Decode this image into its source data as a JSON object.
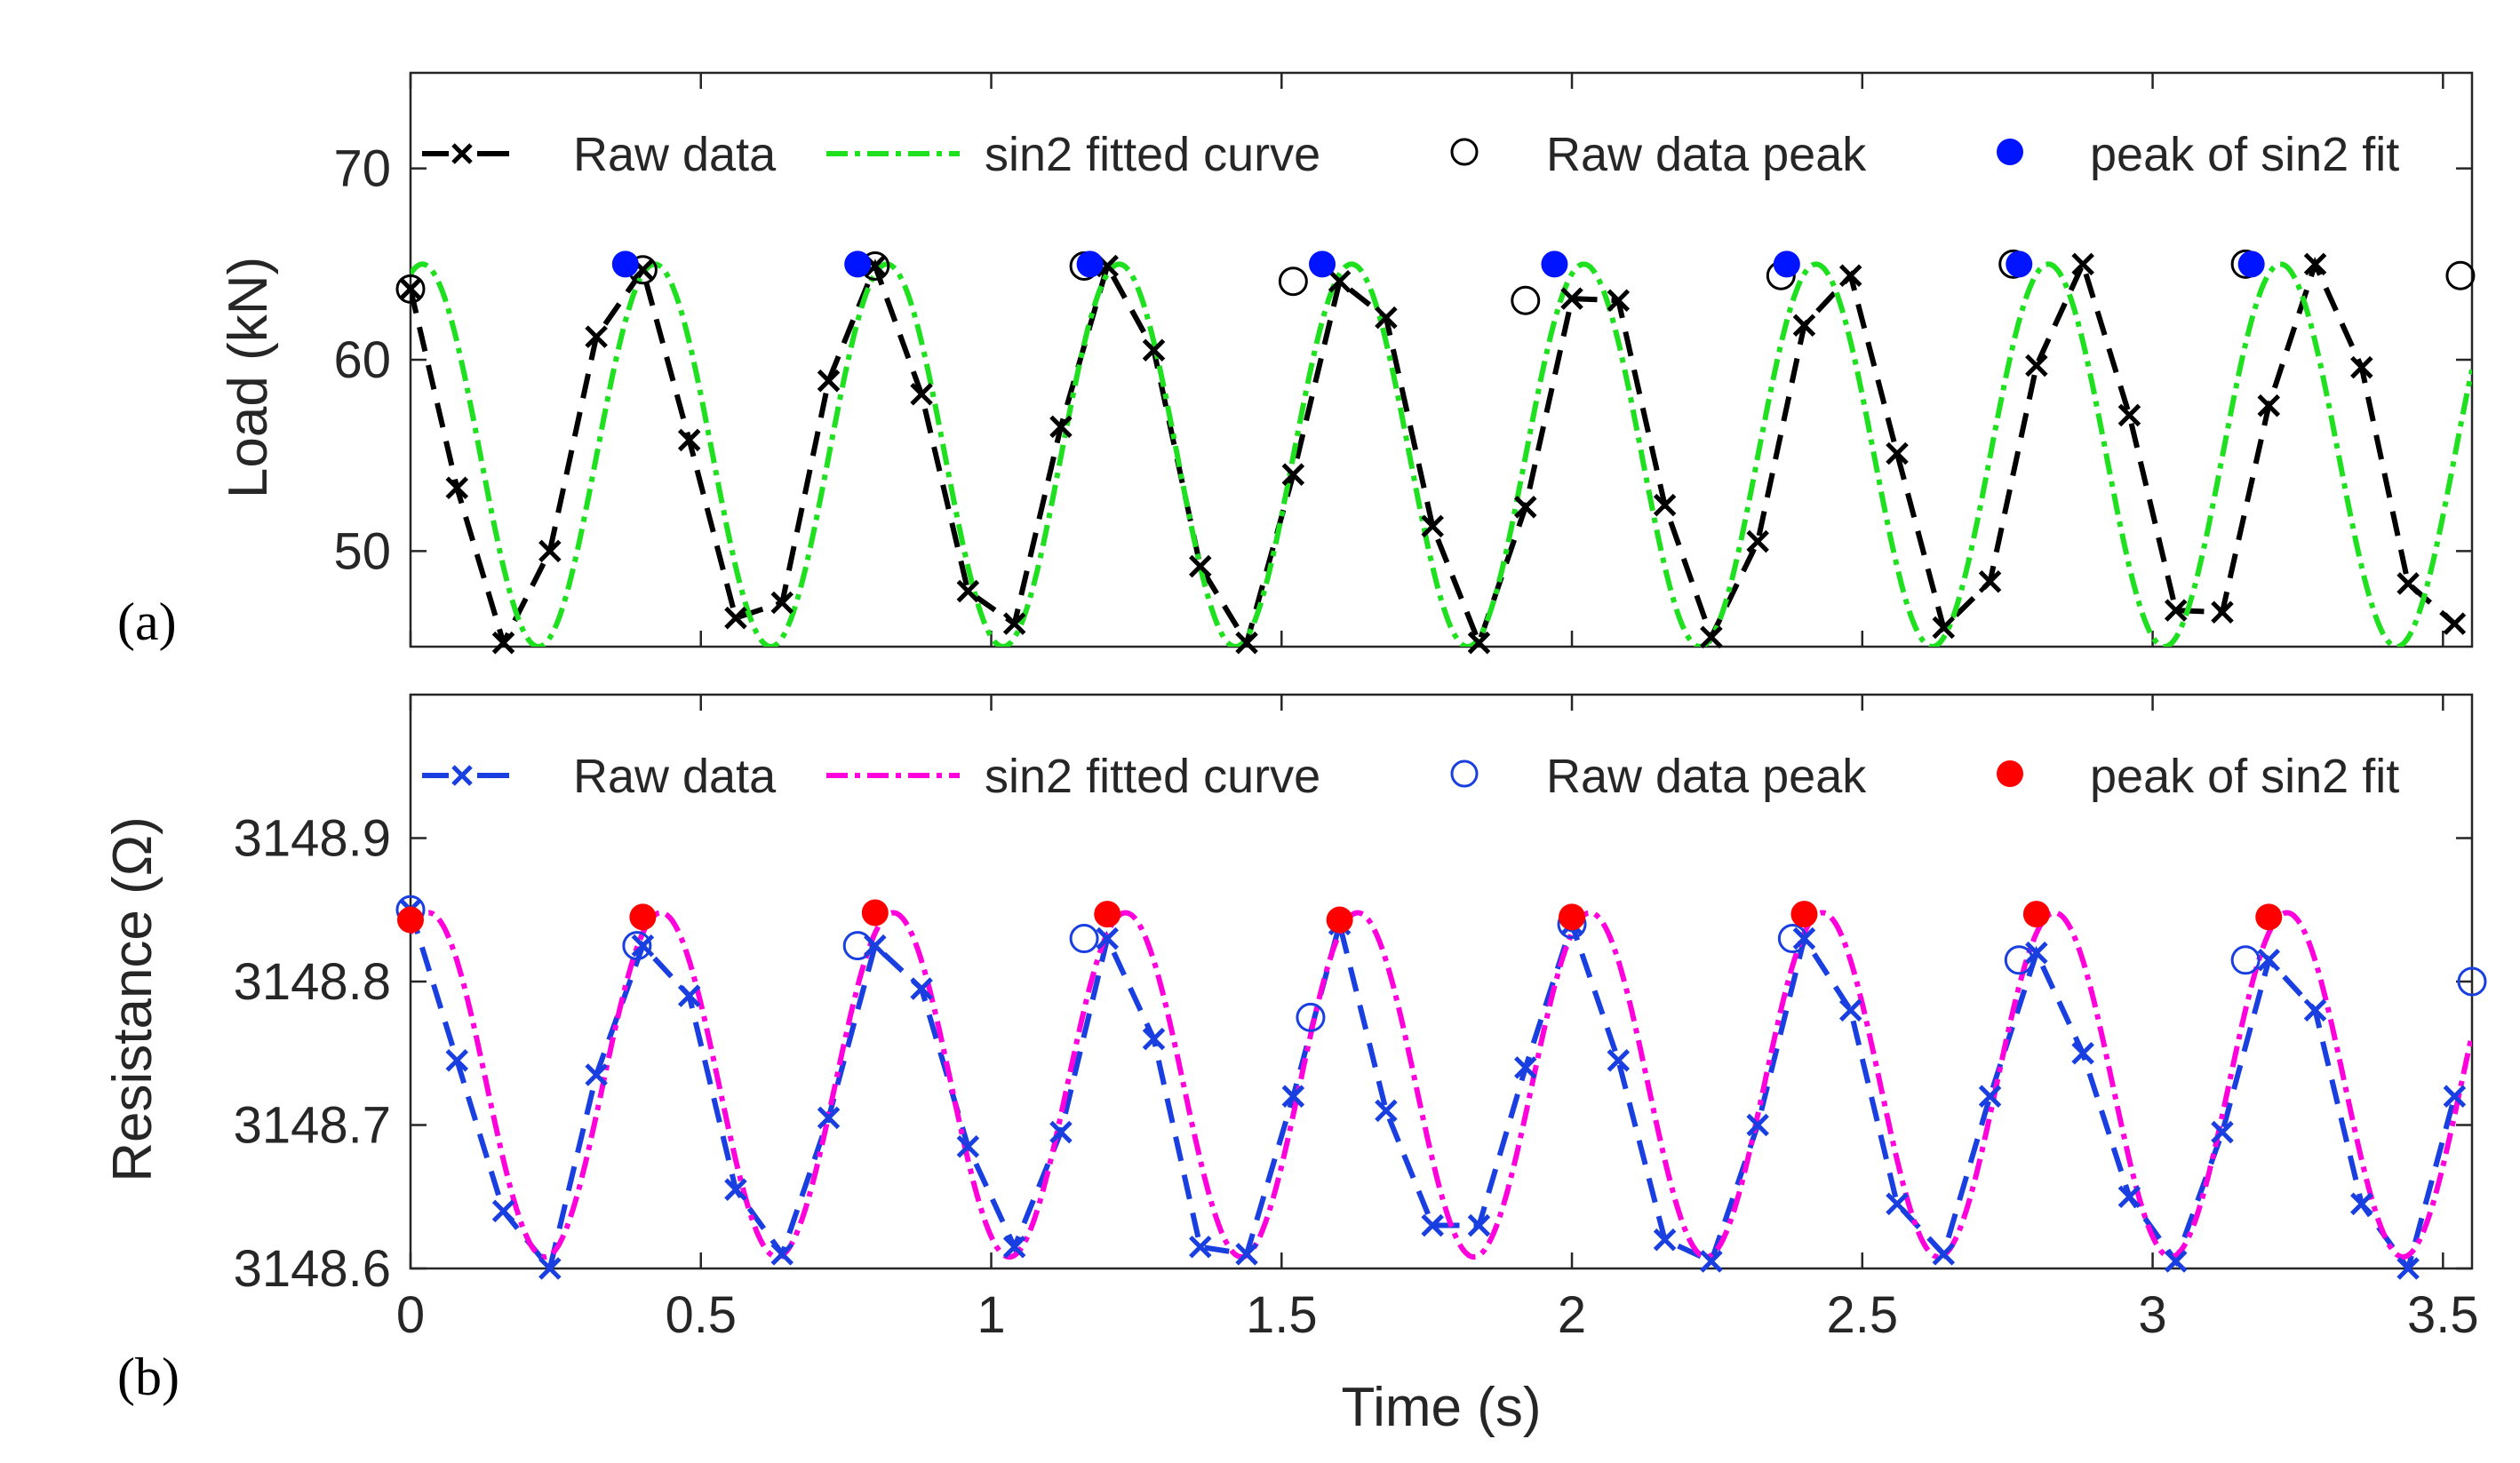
{
  "chart_data": [
    {
      "type": "line",
      "panel_tag": "(a)",
      "xlabel": "",
      "ylabel": "Load (kN)",
      "xlim": [
        0,
        3.55
      ],
      "ylim": [
        45,
        75
      ],
      "xticks": [
        0,
        0.5,
        1,
        1.5,
        2,
        2.5,
        3,
        3.5
      ],
      "yticks": [
        50,
        60,
        70
      ],
      "xtick_labels": [
        "",
        "",
        "",
        "",
        "",
        "",
        "",
        ""
      ],
      "ytick_labels": [
        "50",
        "60",
        "70"
      ],
      "grid": false,
      "legend_position": "top",
      "legend": {
        "raw": "Raw data",
        "fit": "sin2 fitted curve",
        "raw_peak": "Raw data peak",
        "fit_peak": "peak of sin2 fit"
      },
      "colors": {
        "raw": "#000000",
        "fit": "#1ee01e",
        "raw_peak": "#000000",
        "fit_peak": "#0014ff"
      },
      "fit_model": {
        "offset": 55,
        "amplitude": 10,
        "frequency_hz": 2.5,
        "phase_rad": 1.25
      },
      "series": [
        {
          "name": "Raw data",
          "style": "dashed-x",
          "x": [
            0,
            0.08,
            0.16,
            0.24,
            0.32,
            0.4,
            0.48,
            0.56,
            0.64,
            0.72,
            0.8,
            0.88,
            0.96,
            1.04,
            1.12,
            1.2,
            1.28,
            1.36,
            1.44,
            1.52,
            1.6,
            1.68,
            1.76,
            1.84,
            1.92,
            2.0,
            2.08,
            2.16,
            2.24,
            2.32,
            2.4,
            2.48,
            2.56,
            2.64,
            2.72,
            2.8,
            2.88,
            2.96,
            3.04,
            3.12,
            3.2,
            3.28,
            3.36,
            3.44,
            3.52
          ],
          "y": [
            63.7,
            53.3,
            45.2,
            50.0,
            61.2,
            64.7,
            55.8,
            46.5,
            47.3,
            58.9,
            64.9,
            58.2,
            47.9,
            46.2,
            56.5,
            64.9,
            60.5,
            49.2,
            45.2,
            54.0,
            64.1,
            62.2,
            51.3,
            45.2,
            52.3,
            63.2,
            63.1,
            52.4,
            45.5,
            50.5,
            61.8,
            64.4,
            55.1,
            46.0,
            48.4,
            59.7,
            65.0,
            57.1,
            46.9,
            46.8,
            57.6,
            65.0,
            59.6,
            48.3,
            46.2
          ]
        },
        {
          "name": "sin2 fitted curve",
          "style": "dash-dot",
          "function": "offset + amplitude*sin(2*pi*frequency_hz*t + phase_rad)"
        },
        {
          "name": "Raw data peak",
          "style": "open-circle",
          "x": [
            0,
            0.4,
            0.8,
            1.16,
            1.52,
            1.92,
            2.36,
            2.76,
            3.16,
            3.53
          ],
          "y": [
            63.7,
            64.7,
            64.9,
            64.9,
            64.1,
            63.1,
            64.4,
            65.0,
            65.0,
            64.4
          ]
        },
        {
          "name": "peak of sin2 fit",
          "style": "filled-circle",
          "x": [
            0.37,
            0.77,
            1.17,
            1.57,
            1.97,
            2.37,
            2.77,
            3.17
          ],
          "y": [
            65,
            65,
            65,
            65,
            65,
            65,
            65,
            65
          ]
        }
      ]
    },
    {
      "type": "line",
      "panel_tag": "(b)",
      "xlabel": "Time (s)",
      "ylabel": "Resistance (Ω)",
      "xlim": [
        0,
        3.55
      ],
      "ylim": [
        3148.6,
        3149.0
      ],
      "xticks": [
        0,
        0.5,
        1,
        1.5,
        2,
        2.5,
        3,
        3.5
      ],
      "yticks": [
        3148.6,
        3148.7,
        3148.8,
        3148.9
      ],
      "xtick_labels": [
        "0",
        "0.5",
        "1",
        "1.5",
        "2",
        "2.5",
        "3",
        "3.5"
      ],
      "ytick_labels": [
        "3148.6",
        "3148.7",
        "3148.8",
        "3148.9"
      ],
      "grid": false,
      "legend_position": "top",
      "legend": {
        "raw": "Raw data",
        "fit": "sin2 fitted curve",
        "raw_peak": "Raw data peak",
        "fit_peak": "peak of sin2 fit"
      },
      "colors": {
        "raw": "#1a3fe0",
        "fit": "#ff00dd",
        "raw_peak": "#1a3fe0",
        "fit_peak": "#ff0000"
      },
      "fit_model": {
        "offset": 3148.728,
        "amplitude": 0.12,
        "frequency_hz": 2.5,
        "phase_rad": 1.08
      },
      "series": [
        {
          "name": "Raw data",
          "style": "dashed-x",
          "x": [
            0,
            0.08,
            0.16,
            0.24,
            0.32,
            0.4,
            0.48,
            0.56,
            0.64,
            0.72,
            0.8,
            0.88,
            0.96,
            1.04,
            1.12,
            1.2,
            1.28,
            1.36,
            1.44,
            1.52,
            1.6,
            1.68,
            1.76,
            1.84,
            1.92,
            2.0,
            2.08,
            2.16,
            2.24,
            2.32,
            2.4,
            2.48,
            2.56,
            2.64,
            2.72,
            2.8,
            2.88,
            2.96,
            3.04,
            3.12,
            3.2,
            3.28,
            3.36,
            3.44,
            3.52
          ],
          "y": [
            3148.85,
            3148.745,
            3148.64,
            3148.6,
            3148.735,
            3148.825,
            3148.79,
            3148.655,
            3148.61,
            3148.705,
            3148.825,
            3148.795,
            3148.685,
            3148.615,
            3148.695,
            3148.83,
            3148.76,
            3148.615,
            3148.61,
            3148.72,
            3148.84,
            3148.71,
            3148.63,
            3148.63,
            3148.74,
            3148.84,
            3148.745,
            3148.62,
            3148.605,
            3148.7,
            3148.83,
            3148.78,
            3148.645,
            3148.61,
            3148.72,
            3148.82,
            3148.75,
            3148.65,
            3148.605,
            3148.695,
            3148.815,
            3148.78,
            3148.645,
            3148.6,
            3148.72
          ]
        },
        {
          "name": "sin2 fitted curve",
          "style": "dash-dot",
          "function": "offset + amplitude*sin(2*pi*frequency_hz*t + phase_rad)"
        },
        {
          "name": "Raw data peak",
          "style": "open-circle",
          "x": [
            0,
            0.39,
            0.77,
            1.16,
            1.55,
            2.0,
            2.38,
            2.77,
            3.16,
            3.55
          ],
          "y": [
            3148.85,
            3148.825,
            3148.825,
            3148.83,
            3148.775,
            3148.84,
            3148.83,
            3148.815,
            3148.815,
            3148.8
          ]
        },
        {
          "name": "peak of sin2 fit",
          "style": "filled-circle",
          "x": [
            0.0,
            0.4,
            0.8,
            1.2,
            1.6,
            2.0,
            2.4,
            2.8,
            3.2
          ],
          "y": [
            3148.843,
            3148.845,
            3148.848,
            3148.847,
            3148.843,
            3148.845,
            3148.847,
            3148.847,
            3148.845
          ]
        }
      ]
    }
  ]
}
